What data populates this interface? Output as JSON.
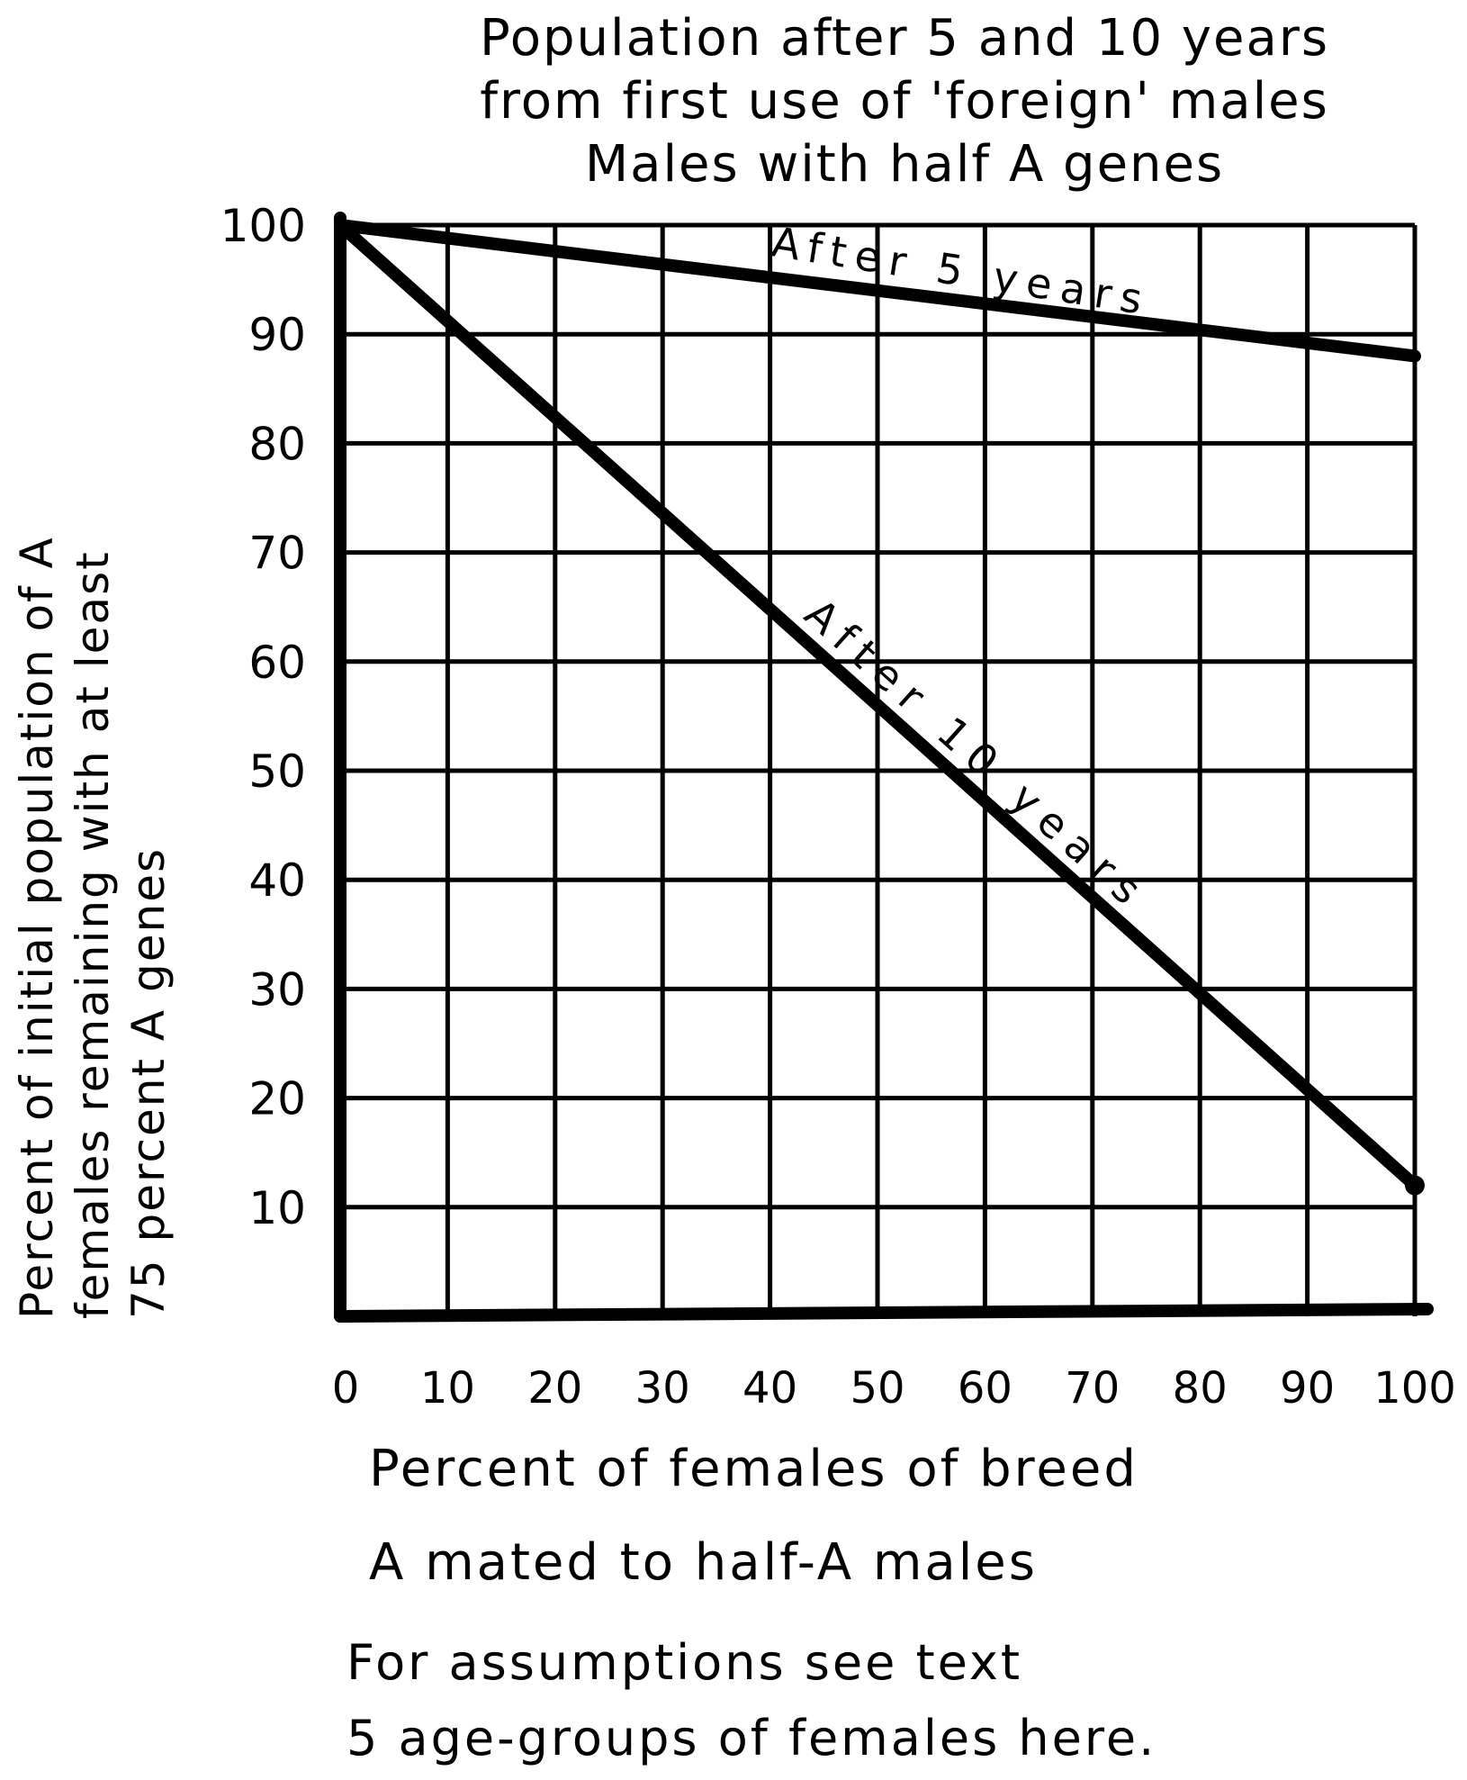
{
  "chart_data": {
    "type": "line",
    "title": "Population after 5 and 10 years from first use of 'foreign' males Males with half A genes",
    "title_lines": [
      "Population after 5 and 10 years",
      "from first use of 'foreign' males",
      "Males with half A genes"
    ],
    "xlabel": "Percent of females of breed A mated to half-A males",
    "xlabel_lines": [
      "Percent of females of breed",
      "A mated to half-A males"
    ],
    "ylabel": "Percent of initial population of A females remaining with at least 75 percent A genes",
    "ylabel_lines": [
      "Percent of initial population of A",
      "females remaining with at least",
      "75 percent A genes"
    ],
    "x_ticks": [
      "0",
      "10",
      "20",
      "30",
      "40",
      "50",
      "60",
      "70",
      "80",
      "90",
      "100"
    ],
    "y_ticks": [
      "10",
      "20",
      "30",
      "40",
      "50",
      "60",
      "70",
      "80",
      "90",
      "100"
    ],
    "xlim": [
      0,
      100
    ],
    "ylim": [
      0,
      100
    ],
    "grid": true,
    "legend": "none (inline labels)",
    "series": [
      {
        "name": "After 5 years",
        "x": [
          0,
          100
        ],
        "values": [
          100,
          88
        ]
      },
      {
        "name": "After 10 years",
        "x": [
          0,
          100
        ],
        "values": [
          100,
          12
        ]
      }
    ],
    "annotations": [
      "For assumptions see text",
      "5 age-groups of females here."
    ]
  },
  "labels": {
    "series_5": "After 5 years",
    "series_10": "After 10 years"
  },
  "notes": {
    "line1": "For assumptions see text",
    "line2": "5 age-groups of females here."
  }
}
